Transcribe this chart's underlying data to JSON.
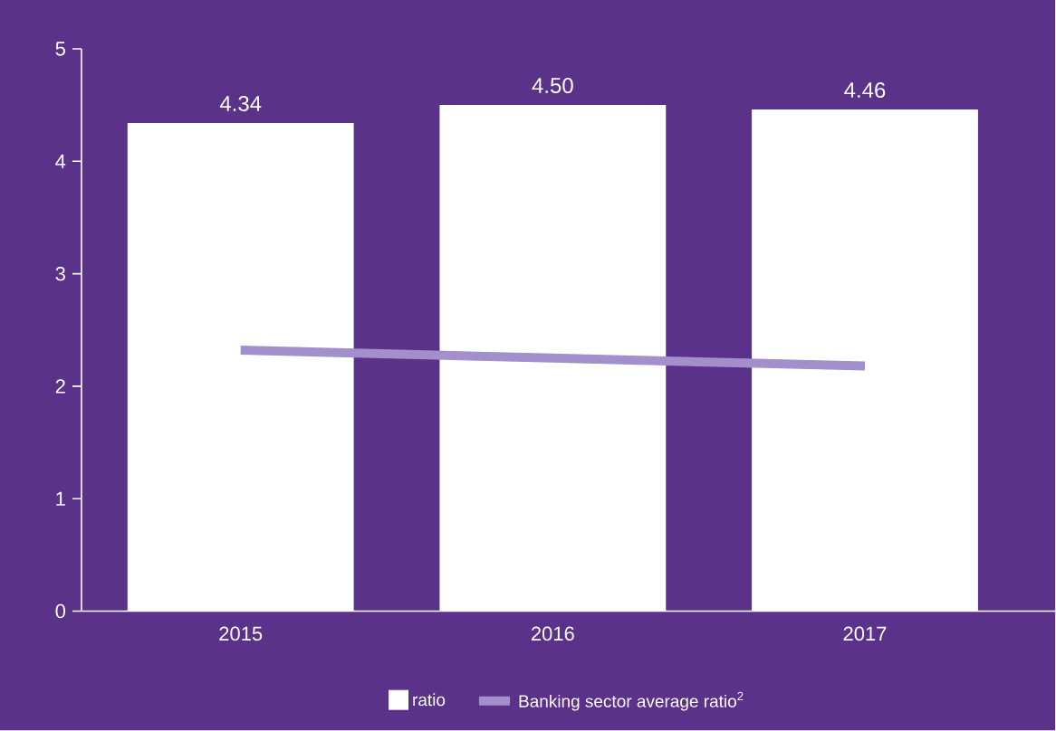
{
  "chart_data": {
    "type": "bar",
    "categories": [
      "2015",
      "2016",
      "2017"
    ],
    "series": [
      {
        "name": "ratio",
        "color": "#ffffff",
        "values": [
          4.34,
          4.5,
          4.46
        ],
        "value_labels": [
          "4.34",
          "4.50",
          "4.46"
        ]
      },
      {
        "name": "Banking sector average ratio$^{2}$",
        "type": "line",
        "color": "#a38fcb",
        "values": [
          2.32,
          2.25,
          2.18
        ]
      }
    ],
    "ylim": [
      0,
      5
    ],
    "yticks": [
      0,
      1,
      2,
      3,
      4,
      5
    ],
    "legend": "bottom",
    "grid": false,
    "marker": "none",
    "line_style": "solid"
  }
}
